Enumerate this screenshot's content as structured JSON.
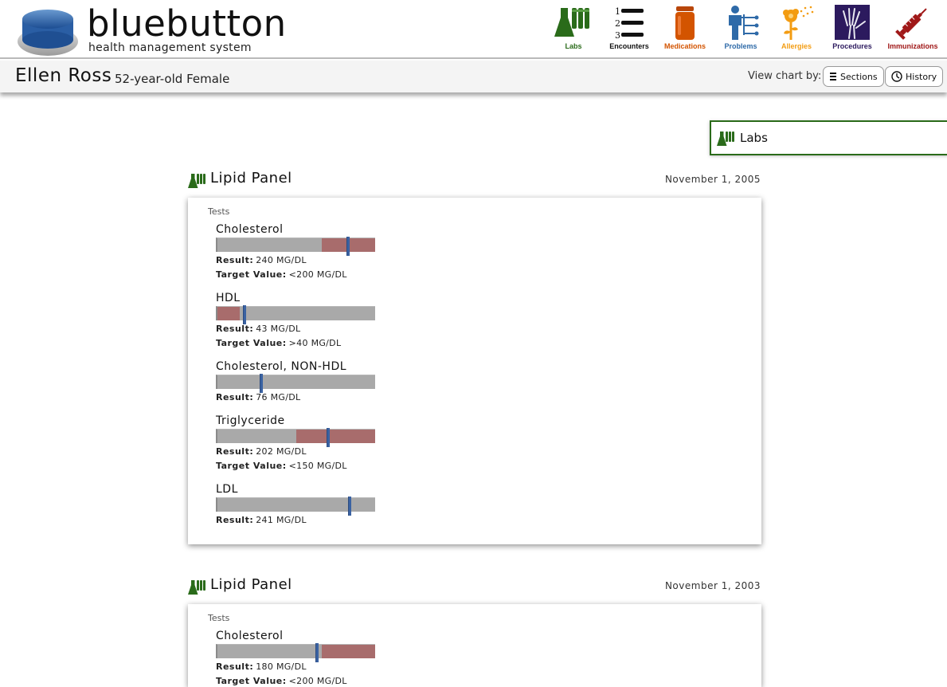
{
  "brand": {
    "title": "bluebutton",
    "subtitle": "health management system"
  },
  "nav": [
    {
      "label": "Labs",
      "icon": "flask-icon",
      "color": "#2a6b1a"
    },
    {
      "label": "Encounters",
      "icon": "numbered-list-icon",
      "color": "#111111"
    },
    {
      "label": "Medications",
      "icon": "pill-bottle-icon",
      "color": "#d35400"
    },
    {
      "label": "Problems",
      "icon": "person-diagram-icon",
      "color": "#2e6aa8"
    },
    {
      "label": "Allergies",
      "icon": "pollen-flower-icon",
      "color": "#f39c12"
    },
    {
      "label": "Procedures",
      "icon": "xray-hand-icon",
      "color": "#2c1a5e"
    },
    {
      "label": "Immunizations",
      "icon": "syringe-icon",
      "color": "#a01818"
    }
  ],
  "patient": {
    "name": "Ellen Ross",
    "description": "52-year-old Female"
  },
  "view": {
    "label": "View chart by:",
    "sections": "Sections",
    "history": "History"
  },
  "side_panel": {
    "label": "Labs"
  },
  "labs": [
    {
      "title": "Lipid Panel",
      "date": "November 1, 2005",
      "tests_label": "Tests",
      "tests": [
        {
          "name": "Cholesterol",
          "result": "240 MG/DL",
          "target": "<200 MG/DL",
          "marker_pct": 0.82,
          "zone": "high",
          "zone_pct": 0.66
        },
        {
          "name": "HDL",
          "result": "43 MG/DL",
          "target": ">40 MG/DL",
          "marker_pct": 0.16,
          "zone": "low",
          "zone_pct": 0.14
        },
        {
          "name": "Cholesterol, NON-HDL",
          "result": "76 MG/DL",
          "target": null,
          "marker_pct": 0.27,
          "zone": null,
          "zone_pct": 0
        },
        {
          "name": "Triglyceride",
          "result": "202 MG/DL",
          "target": "<150 MG/DL",
          "marker_pct": 0.69,
          "zone": "high",
          "zone_pct": 0.5
        },
        {
          "name": "LDL",
          "result": "241 MG/DL",
          "target": null,
          "marker_pct": 0.83,
          "zone": null,
          "zone_pct": 0
        }
      ]
    },
    {
      "title": "Lipid Panel",
      "date": "November 1, 2003",
      "tests_label": "Tests",
      "tests": [
        {
          "name": "Cholesterol",
          "result": "180 MG/DL",
          "target": "<200 MG/DL",
          "marker_pct": 0.62,
          "zone": "high",
          "zone_pct": 0.66
        }
      ]
    }
  ],
  "labels": {
    "result": "Result:",
    "target": "Target Value:"
  },
  "colors": {
    "accent_green": "#2a6b1a",
    "zone_red": "#a86c6c",
    "marker_blue": "#3a62a2"
  }
}
